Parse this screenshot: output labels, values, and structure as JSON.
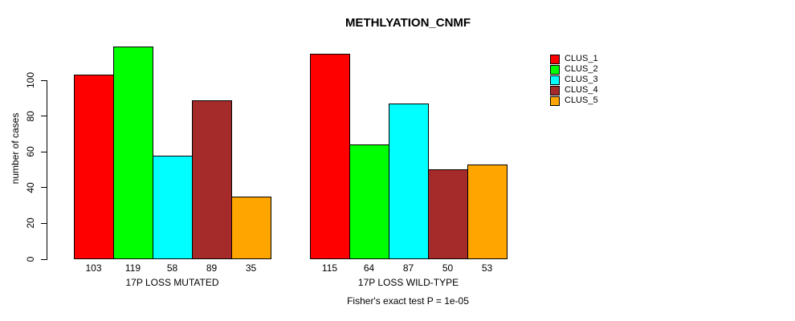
{
  "title": "METHLYATION_CNMF",
  "ylabel": "number of cases",
  "footnote": "Fisher's exact test P = 1e-05",
  "legend": {
    "position": "right",
    "items": [
      {
        "label": "CLUS_1",
        "color": "#FF0000"
      },
      {
        "label": "CLUS_2",
        "color": "#00FF00"
      },
      {
        "label": "CLUS_3",
        "color": "#00FFFF"
      },
      {
        "label": "CLUS_4",
        "color": "#A52A2A"
      },
      {
        "label": "CLUS_5",
        "color": "#FFA500"
      }
    ]
  },
  "chart_data": {
    "type": "bar",
    "title": "METHLYATION_CNMF",
    "ylabel": "number of cases",
    "xlabel": "",
    "ylim": [
      0,
      120
    ],
    "yticks": [
      0,
      20,
      40,
      60,
      80,
      100
    ],
    "grid": false,
    "legend_position": "right",
    "series_names": [
      "CLUS_1",
      "CLUS_2",
      "CLUS_3",
      "CLUS_4",
      "CLUS_5"
    ],
    "series_colors": [
      "#FF0000",
      "#00FF00",
      "#00FFFF",
      "#A52A2A",
      "#FFA500"
    ],
    "groups": [
      {
        "label": "17P LOSS MUTATED",
        "values": [
          103,
          119,
          58,
          89,
          35
        ]
      },
      {
        "label": "17P LOSS WILD-TYPE",
        "values": [
          115,
          64,
          87,
          50,
          53
        ]
      }
    ],
    "annotation": "Fisher's exact test P = 1e-05"
  }
}
